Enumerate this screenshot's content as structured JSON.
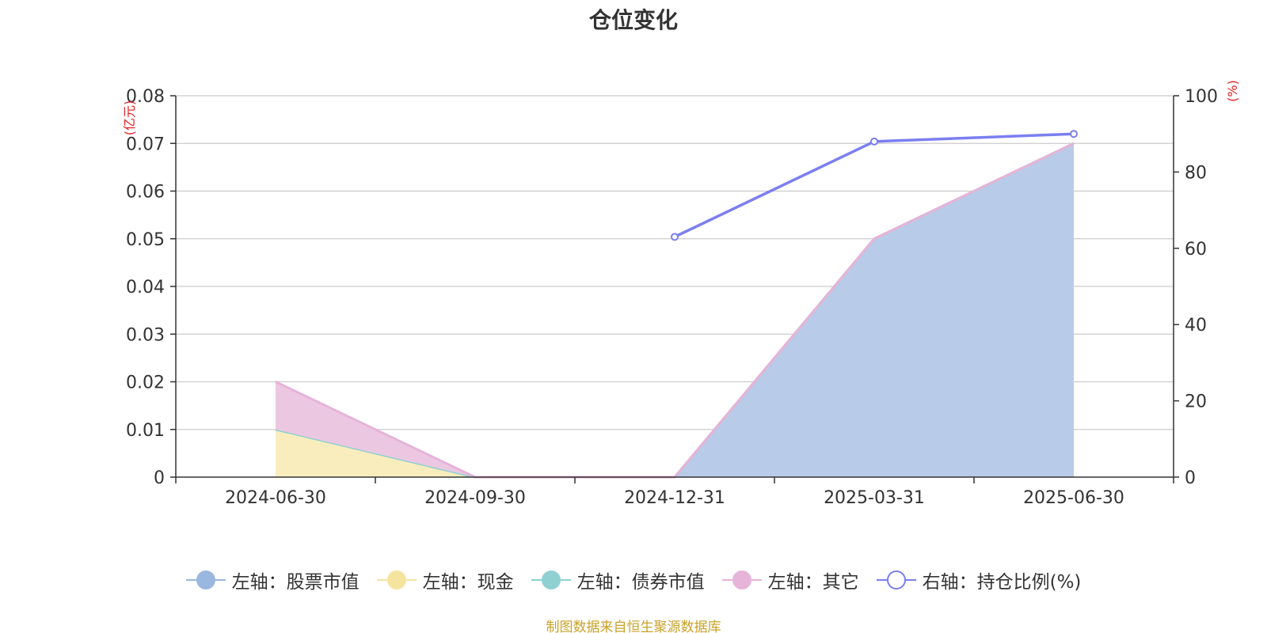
{
  "chart_data": {
    "type": "area",
    "title": "仓位变化",
    "categories": [
      "2024-06-30",
      "2024-09-30",
      "2024-12-31",
      "2025-03-31",
      "2025-06-30"
    ],
    "left_axis": {
      "unit": "(亿元)",
      "ylim": [
        0,
        0.08
      ],
      "ticks": [
        0,
        0.01,
        0.02,
        0.03,
        0.04,
        0.05,
        0.06,
        0.07,
        0.08
      ],
      "tick_labels": [
        "0",
        "0.01",
        "0.02",
        "0.03",
        "0.04",
        "0.05",
        "0.06",
        "0.07",
        "0.08"
      ]
    },
    "right_axis": {
      "unit": "(%)",
      "ylim": [
        0,
        100
      ],
      "ticks": [
        0,
        20,
        40,
        60,
        80,
        100
      ],
      "tick_labels": [
        "0",
        "20",
        "40",
        "60",
        "80",
        "100"
      ]
    },
    "grid": true,
    "legend_position": "bottom",
    "series": [
      {
        "name": "左轴：股票市值",
        "axis": "left",
        "kind": "stacked-area",
        "color": "#9ab7e0",
        "fill": "#b8cbe8",
        "values": [
          null,
          0,
          0,
          0.05,
          0.07
        ]
      },
      {
        "name": "左轴：现金",
        "axis": "left",
        "kind": "stacked-area",
        "color": "#f5e4a0",
        "fill": "#faedbd",
        "values": [
          0.01,
          0,
          0,
          0,
          0
        ]
      },
      {
        "name": "左轴：债券市值",
        "axis": "left",
        "kind": "stacked-area",
        "color": "#8fd1d3",
        "fill": "#b5e2e3",
        "values": [
          0,
          0,
          0,
          0,
          0
        ]
      },
      {
        "name": "左轴：其它",
        "axis": "left",
        "kind": "stacked-area",
        "color": "#e6b3d9",
        "fill": "#ecc7e2",
        "values": [
          0.01,
          0,
          0,
          0,
          0
        ]
      },
      {
        "name": "右轴：持仓比例(%)",
        "axis": "right",
        "kind": "line",
        "color": "#7b7ff0",
        "values": [
          null,
          null,
          63,
          88,
          90
        ]
      }
    ],
    "source_note": "制图数据来自恒生聚源数据库",
    "unit_color": "#e02020"
  }
}
